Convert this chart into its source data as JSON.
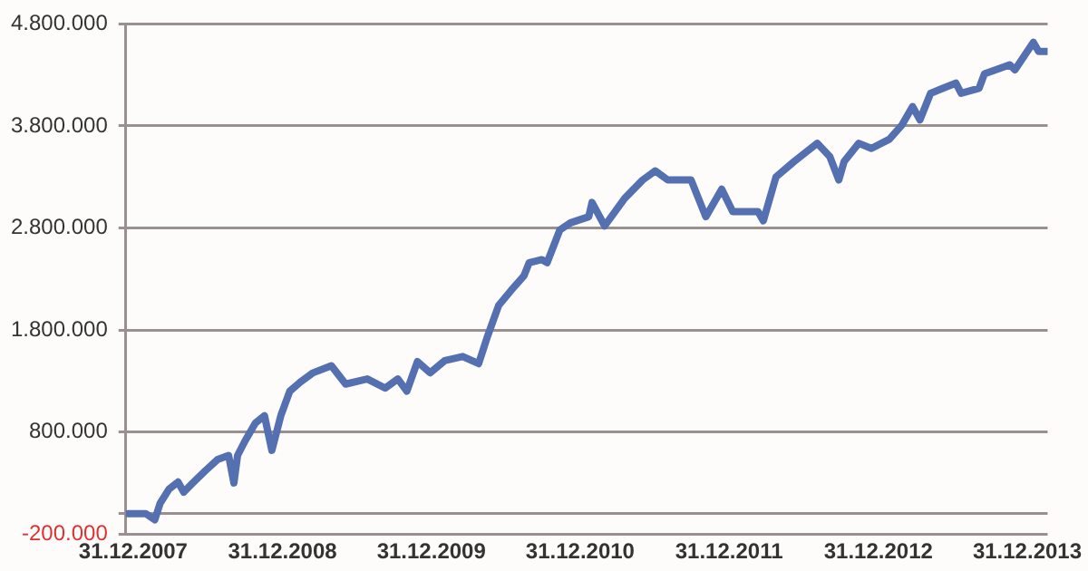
{
  "chart_data": {
    "type": "line",
    "x": [
      "2007-12-18",
      "2008-01-31",
      "2008-02-22",
      "2008-03-06",
      "2008-03-28",
      "2008-04-19",
      "2008-05-03",
      "2008-05-25",
      "2008-06-25",
      "2008-07-25",
      "2008-08-21",
      "2008-09-03",
      "2008-09-12",
      "2008-09-30",
      "2008-10-26",
      "2008-11-17",
      "2008-12-05",
      "2008-12-27",
      "2009-01-18",
      "2009-02-13",
      "2009-03-16",
      "2009-04-30",
      "2009-06-04",
      "2009-07-27",
      "2009-09-09",
      "2009-10-10",
      "2009-11-01",
      "2009-11-27",
      "2009-12-28",
      "2010-02-02",
      "2010-03-18",
      "2010-04-26",
      "2010-05-18",
      "2010-06-14",
      "2010-07-15",
      "2010-08-15",
      "2010-08-28",
      "2010-09-28",
      "2010-10-11",
      "2010-11-11",
      "2010-12-07",
      "2011-01-21",
      "2011-01-29",
      "2011-03-01",
      "2011-04-19",
      "2011-06-02",
      "2011-07-03",
      "2011-08-03",
      "2011-09-29",
      "2011-11-04",
      "2011-12-13",
      "2012-01-09",
      "2012-03-11",
      "2012-03-24",
      "2012-04-24",
      "2012-06-07",
      "2012-08-03",
      "2012-09-03",
      "2012-09-25",
      "2012-10-08",
      "2012-11-13",
      "2012-12-14",
      "2013-01-27",
      "2013-02-27",
      "2013-03-25",
      "2013-04-12",
      "2013-05-08",
      "2013-06-08",
      "2013-07-09",
      "2013-07-22",
      "2013-09-04",
      "2013-09-17",
      "2013-11-18",
      "2013-12-01",
      "2014-01-15",
      "2014-01-28",
      "2014-02-19"
    ],
    "series": [
      {
        "color": "#5570b0",
        "values": [
          0,
          0,
          -60000,
          100000,
          240000,
          310000,
          210000,
          300000,
          420000,
          530000,
          570000,
          300000,
          570000,
          710000,
          890000,
          960000,
          620000,
          960000,
          1200000,
          1290000,
          1380000,
          1450000,
          1270000,
          1320000,
          1230000,
          1320000,
          1200000,
          1490000,
          1380000,
          1500000,
          1540000,
          1470000,
          1740000,
          2040000,
          2190000,
          2330000,
          2460000,
          2490000,
          2460000,
          2780000,
          2850000,
          2910000,
          3050000,
          2820000,
          3090000,
          3270000,
          3360000,
          3270000,
          3270000,
          2910000,
          3180000,
          2960000,
          2960000,
          2870000,
          3300000,
          3450000,
          3630000,
          3500000,
          3270000,
          3450000,
          3630000,
          3580000,
          3670000,
          3810000,
          3990000,
          3860000,
          4120000,
          4170000,
          4220000,
          4120000,
          4170000,
          4310000,
          4400000,
          4350000,
          4620000,
          4530000,
          4530000
        ]
      }
    ],
    "xlim": [
      "2007-12-13",
      "2014-02-19"
    ],
    "xticks": [
      {
        "value": "2007-12-31",
        "label": "31.12.2007"
      },
      {
        "value": "2008-12-31",
        "label": "31.12.2008"
      },
      {
        "value": "2009-12-31",
        "label": "31.12.2009"
      },
      {
        "value": "2010-12-31",
        "label": "31.12.2010"
      },
      {
        "value": "2011-12-31",
        "label": "31.12.2011"
      },
      {
        "value": "2012-12-31",
        "label": "31.12.2012"
      },
      {
        "value": "2013-12-31",
        "label": "31.12.2013"
      }
    ],
    "ylim": [
      -200000,
      4800000
    ],
    "yticks": [
      {
        "value": -200000,
        "label": "-200.000"
      },
      {
        "value": 0,
        "label": null
      },
      {
        "value": 800000,
        "label": "800.000"
      },
      {
        "value": 1800000,
        "label": "1.800.000"
      },
      {
        "value": 2800000,
        "label": "2.800.000"
      },
      {
        "value": 3800000,
        "label": "3.800.000"
      },
      {
        "value": 4800000,
        "label": "4.800.000"
      }
    ],
    "grid": "y",
    "marker": "none",
    "line_style": "solid"
  }
}
